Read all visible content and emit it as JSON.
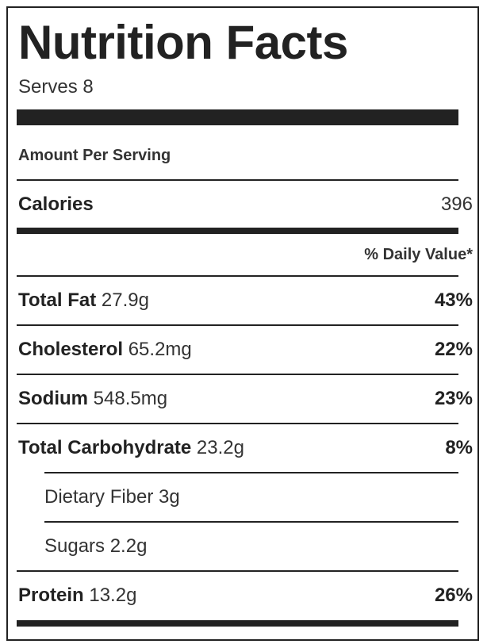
{
  "label": {
    "title": "Nutrition Facts",
    "serves": "Serves 8",
    "amount_per_serving": "Amount Per Serving",
    "calories": {
      "label": "Calories",
      "value": "396"
    },
    "daily_value_header": "% Daily Value*",
    "nutrients": [
      {
        "name": "Total Fat",
        "amount": "27.9g",
        "dv": "43%"
      },
      {
        "name": "Cholesterol",
        "amount": "65.2mg",
        "dv": "22%"
      },
      {
        "name": "Sodium",
        "amount": "548.5mg",
        "dv": "23%"
      },
      {
        "name": "Total Carbohydrate",
        "amount": "23.2g",
        "dv": "8%"
      },
      {
        "name": "Dietary Fiber 3g",
        "amount": "",
        "dv": ""
      },
      {
        "name": "Sugars 2.2g",
        "amount": "",
        "dv": ""
      },
      {
        "name": "Protein",
        "amount": "13.2g",
        "dv": "26%"
      }
    ]
  }
}
